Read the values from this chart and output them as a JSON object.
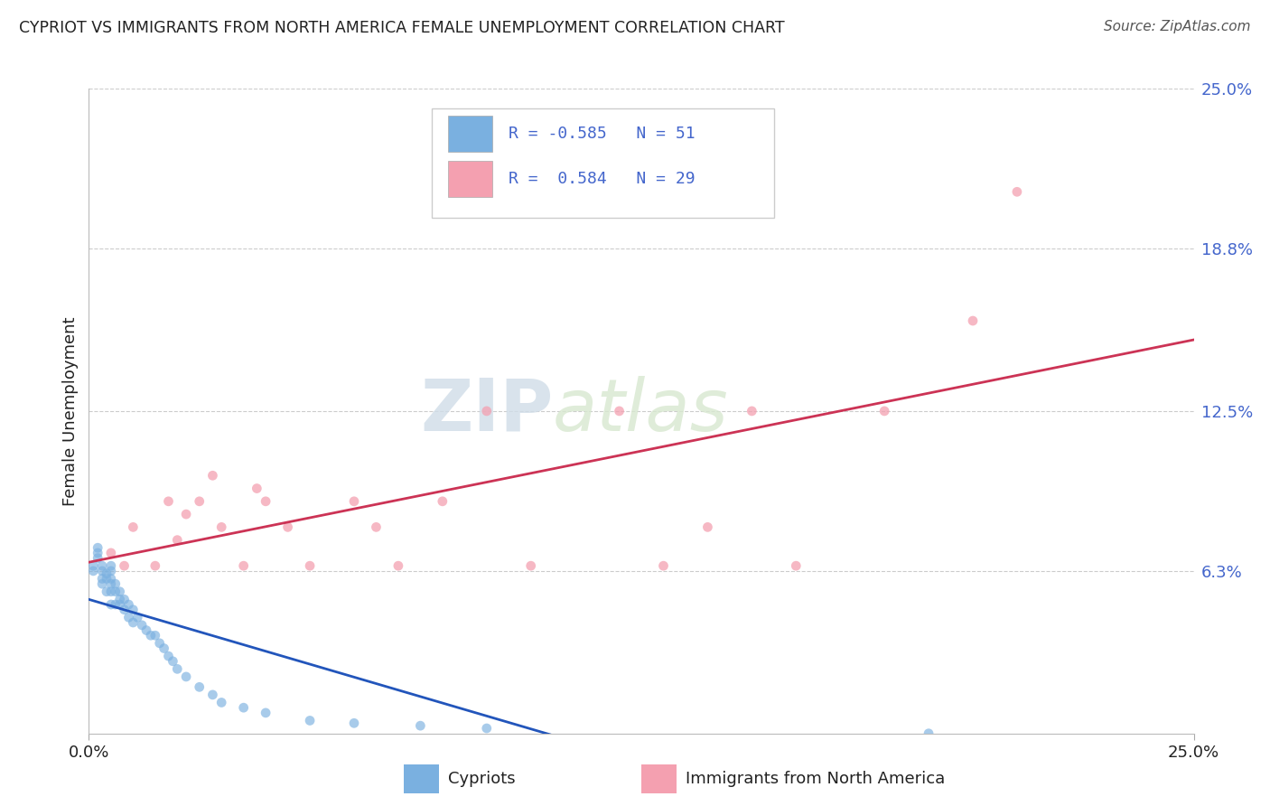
{
  "title": "CYPRIOT VS IMMIGRANTS FROM NORTH AMERICA FEMALE UNEMPLOYMENT CORRELATION CHART",
  "source_text": "Source: ZipAtlas.com",
  "ylabel": "Female Unemployment",
  "x_min": 0.0,
  "x_max": 0.25,
  "y_min": 0.0,
  "y_max": 0.25,
  "right_y_ticks": [
    0.063,
    0.125,
    0.188,
    0.25
  ],
  "right_y_tick_labels": [
    "6.3%",
    "12.5%",
    "18.8%",
    "25.0%"
  ],
  "x_ticks": [
    0.0,
    0.25
  ],
  "x_tick_labels": [
    "0.0%",
    "25.0%"
  ],
  "cypriot_color": "#7ab0e0",
  "immigrant_color": "#f4a0b0",
  "cypriot_R": -0.585,
  "cypriot_N": 51,
  "immigrant_R": 0.584,
  "immigrant_N": 29,
  "legend_label_cypriot": "Cypriots",
  "legend_label_immigrant": "Immigrants from North America",
  "watermark_zip": "ZIP",
  "watermark_atlas": "atlas",
  "grid_color": "#cccccc",
  "trend_blue": "#2255bb",
  "trend_pink": "#cc3355",
  "dot_size": 60,
  "cypriot_x": [
    0.001,
    0.001,
    0.002,
    0.002,
    0.002,
    0.003,
    0.003,
    0.003,
    0.003,
    0.004,
    0.004,
    0.004,
    0.005,
    0.005,
    0.005,
    0.005,
    0.005,
    0.005,
    0.006,
    0.006,
    0.006,
    0.007,
    0.007,
    0.007,
    0.008,
    0.008,
    0.009,
    0.009,
    0.01,
    0.01,
    0.011,
    0.012,
    0.013,
    0.014,
    0.015,
    0.016,
    0.017,
    0.018,
    0.019,
    0.02,
    0.022,
    0.025,
    0.028,
    0.03,
    0.035,
    0.04,
    0.05,
    0.06,
    0.075,
    0.09,
    0.19
  ],
  "cypriot_y": [
    0.063,
    0.065,
    0.07,
    0.068,
    0.072,
    0.063,
    0.065,
    0.06,
    0.058,
    0.062,
    0.06,
    0.055,
    0.065,
    0.063,
    0.06,
    0.058,
    0.055,
    0.05,
    0.058,
    0.055,
    0.05,
    0.055,
    0.052,
    0.05,
    0.052,
    0.048,
    0.05,
    0.045,
    0.048,
    0.043,
    0.045,
    0.042,
    0.04,
    0.038,
    0.038,
    0.035,
    0.033,
    0.03,
    0.028,
    0.025,
    0.022,
    0.018,
    0.015,
    0.012,
    0.01,
    0.008,
    0.005,
    0.004,
    0.003,
    0.002,
    0.0
  ],
  "immigrant_x": [
    0.005,
    0.008,
    0.01,
    0.015,
    0.018,
    0.02,
    0.022,
    0.025,
    0.028,
    0.03,
    0.035,
    0.038,
    0.04,
    0.045,
    0.05,
    0.06,
    0.065,
    0.07,
    0.08,
    0.09,
    0.1,
    0.12,
    0.13,
    0.14,
    0.15,
    0.16,
    0.18,
    0.2,
    0.21
  ],
  "immigrant_y": [
    0.07,
    0.065,
    0.08,
    0.065,
    0.09,
    0.075,
    0.085,
    0.09,
    0.1,
    0.08,
    0.065,
    0.095,
    0.09,
    0.08,
    0.065,
    0.09,
    0.08,
    0.065,
    0.09,
    0.125,
    0.065,
    0.125,
    0.065,
    0.08,
    0.125,
    0.065,
    0.125,
    0.16,
    0.21
  ],
  "title_color": "#222222",
  "source_color": "#555555",
  "tick_color": "#4466cc",
  "label_color": "#222222"
}
